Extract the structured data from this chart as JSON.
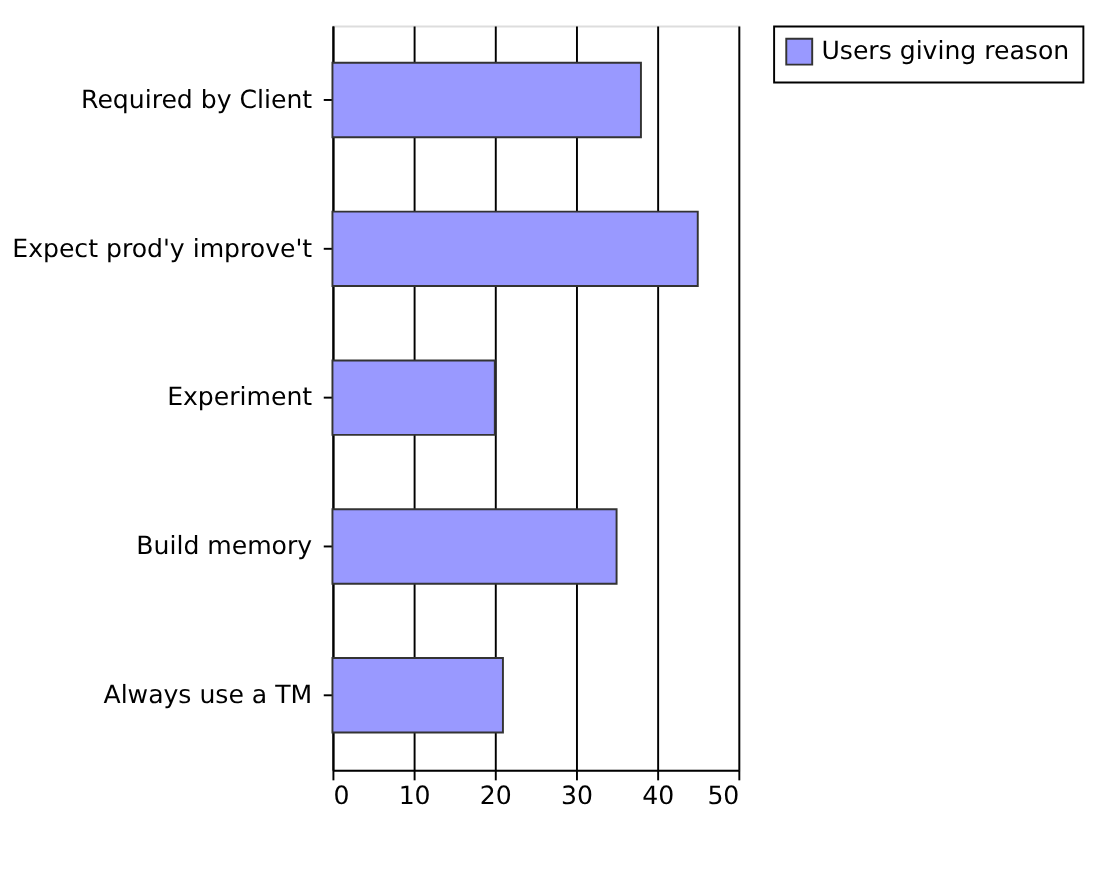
{
  "chart_data": {
    "type": "bar",
    "orientation": "horizontal",
    "categories": [
      "Required by Client",
      "Expect prod'y improve't",
      "Experiment",
      "Build memory",
      "Always use a TM"
    ],
    "series": [
      {
        "name": "Users giving reason",
        "color": "#9999ff",
        "values": [
          38,
          45,
          20,
          35,
          21
        ]
      }
    ],
    "xlim": [
      0,
      50
    ],
    "xticks": [
      0,
      10,
      20,
      30,
      40,
      50
    ],
    "grid": "x",
    "legend": "right"
  }
}
